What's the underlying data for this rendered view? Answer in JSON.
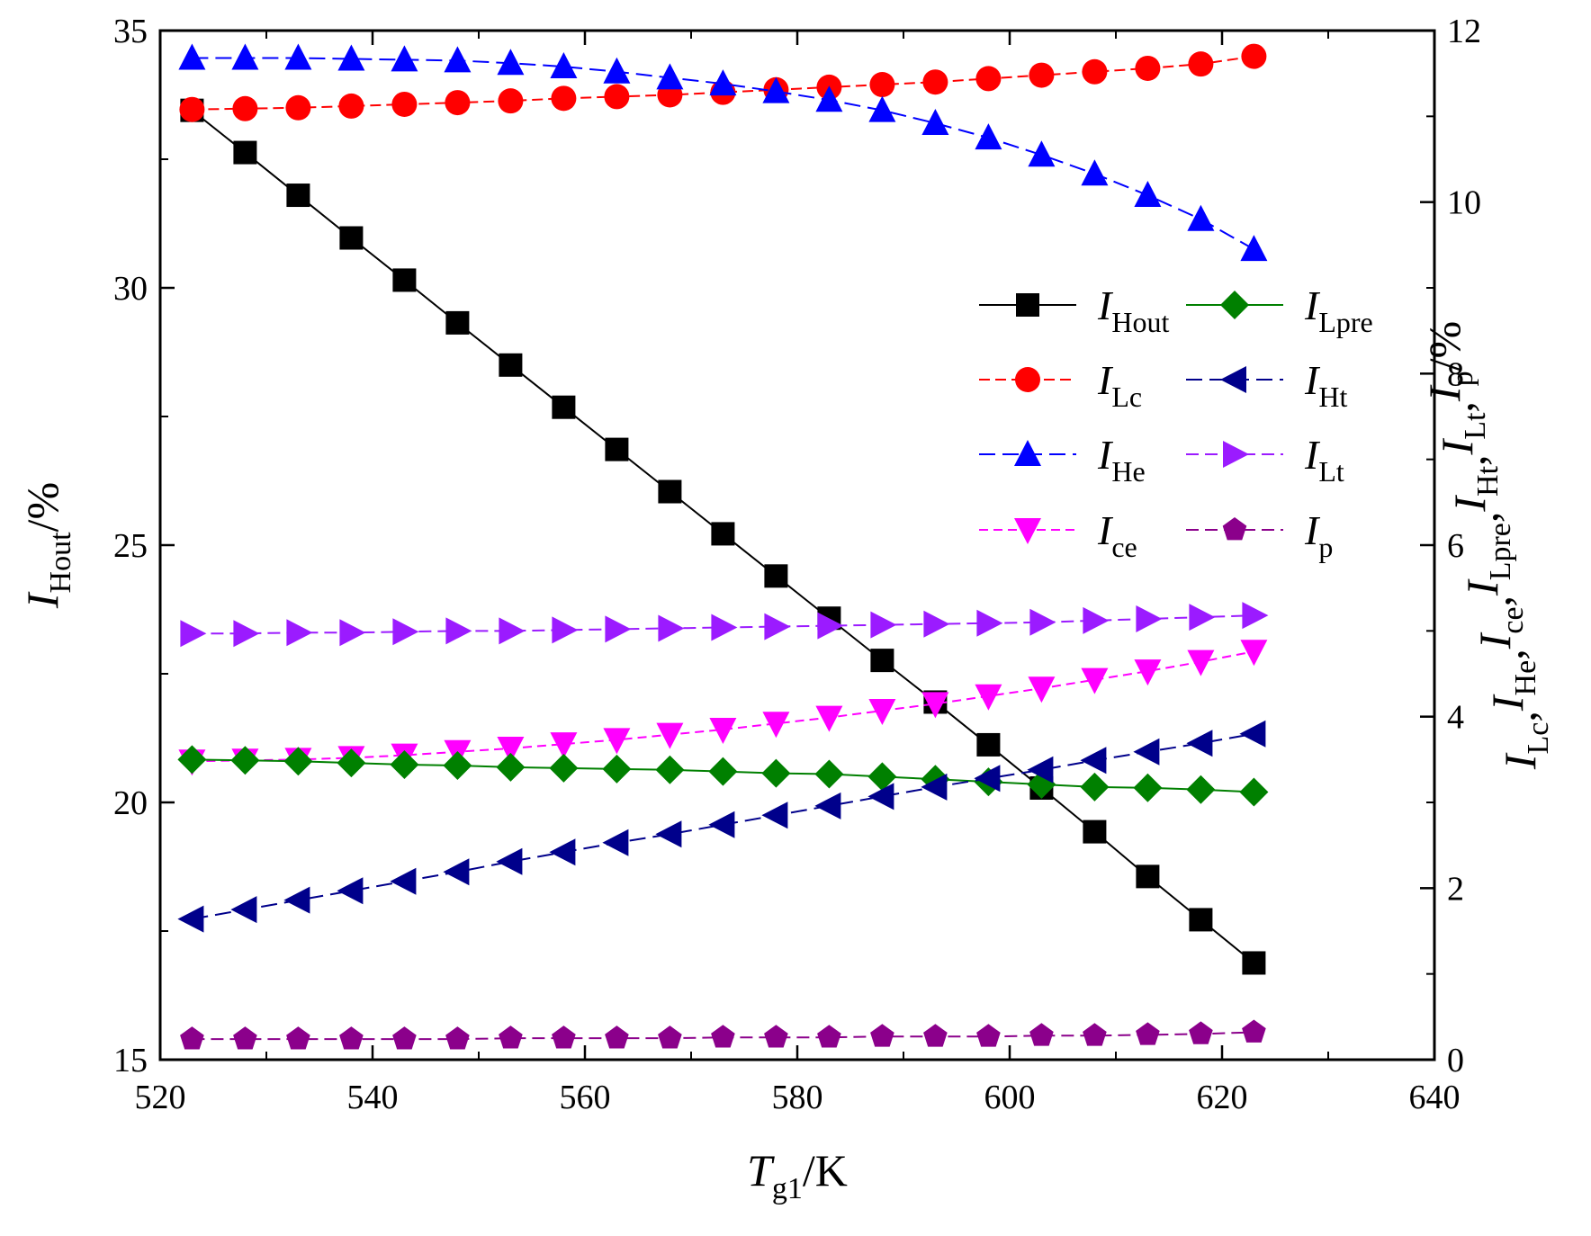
{
  "chart_data": {
    "type": "line",
    "x": [
      523,
      528,
      533,
      538,
      543,
      548,
      553,
      558,
      563,
      568,
      573,
      578,
      583,
      588,
      593,
      598,
      603,
      608,
      613,
      618,
      623
    ],
    "xlabel": {
      "main": "T",
      "sub": "g1",
      "unit": "/K"
    },
    "ylabel_left": {
      "main": "I",
      "sub": "Hout",
      "unit": "/%"
    },
    "ylabel_right": {
      "parts": [
        {
          "main": "I",
          "sub": "Lc",
          "sep": ","
        },
        {
          "main": "I",
          "sub": "He",
          "sep": ","
        },
        {
          "main": "I",
          "sub": "ce",
          "sep": ","
        },
        {
          "main": "I",
          "sub": "Lpre",
          "sep": ","
        },
        {
          "main": "I",
          "sub": "Ht",
          "sep": ","
        },
        {
          "main": "I",
          "sub": "Lt",
          "sep": ","
        },
        {
          "main": "I",
          "sub": "p",
          "sep": ""
        }
      ],
      "unit": "/%"
    },
    "xlim": [
      520,
      640
    ],
    "xticks": [
      520,
      540,
      560,
      580,
      600,
      620,
      640
    ],
    "ylim_left": [
      15,
      35
    ],
    "yticks_left": [
      15,
      20,
      25,
      30,
      35
    ],
    "ylim_right": [
      0,
      12
    ],
    "yticks_right": [
      0,
      2,
      4,
      6,
      8,
      10,
      12
    ],
    "legend_position": "right-middle",
    "series": [
      {
        "key": "hout",
        "main": "I",
        "sub": "Hout",
        "axis": "left",
        "color": "#000000",
        "marker": "square",
        "dash": "",
        "values": [
          33.45,
          32.63,
          31.8,
          30.97,
          30.15,
          29.32,
          28.5,
          27.68,
          26.86,
          26.04,
          25.22,
          24.4,
          23.58,
          22.76,
          21.95,
          21.12,
          20.28,
          19.43,
          18.56,
          17.72,
          16.88
        ]
      },
      {
        "key": "lc",
        "main": "I",
        "sub": "Lc",
        "axis": "right",
        "color": "#ff0000",
        "marker": "circle",
        "dash": "12,6",
        "values": [
          11.08,
          11.09,
          11.1,
          11.12,
          11.14,
          11.16,
          11.18,
          11.21,
          11.23,
          11.25,
          11.28,
          11.31,
          11.34,
          11.37,
          11.4,
          11.44,
          11.48,
          11.52,
          11.56,
          11.61,
          11.7
        ]
      },
      {
        "key": "he",
        "main": "I",
        "sub": "He",
        "axis": "right",
        "color": "#0000ff",
        "marker": "triangle-up",
        "dash": "18,8",
        "values": [
          11.68,
          11.68,
          11.68,
          11.67,
          11.66,
          11.65,
          11.62,
          11.58,
          11.52,
          11.45,
          11.38,
          11.29,
          11.19,
          11.07,
          10.92,
          10.75,
          10.55,
          10.33,
          10.08,
          9.8,
          9.45
        ]
      },
      {
        "key": "ce",
        "main": "I",
        "sub": "ce",
        "axis": "right",
        "color": "#ff00ff",
        "marker": "triangle-down",
        "dash": "10,6",
        "values": [
          3.48,
          3.49,
          3.5,
          3.52,
          3.55,
          3.59,
          3.63,
          3.68,
          3.73,
          3.79,
          3.85,
          3.92,
          3.99,
          4.07,
          4.15,
          4.24,
          4.33,
          4.43,
          4.53,
          4.64,
          4.76
        ]
      },
      {
        "key": "lpre",
        "main": "I",
        "sub": "Lpre",
        "axis": "right",
        "color": "#008000",
        "marker": "diamond",
        "dash": "",
        "values": [
          3.5,
          3.49,
          3.48,
          3.46,
          3.44,
          3.43,
          3.41,
          3.4,
          3.39,
          3.38,
          3.36,
          3.34,
          3.33,
          3.3,
          3.27,
          3.24,
          3.21,
          3.18,
          3.17,
          3.15,
          3.12
        ]
      },
      {
        "key": "ht",
        "main": "I",
        "sub": "Ht",
        "axis": "right",
        "color": "#00008b",
        "marker": "triangle-left",
        "dash": "18,8",
        "values": [
          1.64,
          1.75,
          1.86,
          1.97,
          2.08,
          2.19,
          2.31,
          2.42,
          2.53,
          2.63,
          2.74,
          2.85,
          2.96,
          3.07,
          3.18,
          3.28,
          3.38,
          3.49,
          3.59,
          3.69,
          3.8
        ]
      },
      {
        "key": "lt",
        "main": "I",
        "sub": "Lt",
        "axis": "right",
        "color": "#9b1bff",
        "marker": "triangle-right",
        "dash": "14,7",
        "values": [
          4.97,
          4.97,
          4.98,
          4.98,
          4.99,
          5.0,
          5.0,
          5.01,
          5.02,
          5.03,
          5.04,
          5.05,
          5.06,
          5.07,
          5.08,
          5.09,
          5.1,
          5.12,
          5.14,
          5.16,
          5.18
        ]
      },
      {
        "key": "p",
        "main": "I",
        "sub": "p",
        "axis": "right",
        "color": "#8b008b",
        "marker": "pentagon",
        "dash": "14,7",
        "values": [
          0.24,
          0.24,
          0.24,
          0.24,
          0.24,
          0.24,
          0.25,
          0.25,
          0.25,
          0.25,
          0.26,
          0.26,
          0.26,
          0.27,
          0.27,
          0.27,
          0.28,
          0.28,
          0.29,
          0.3,
          0.32
        ]
      }
    ],
    "legend_order": [
      "hout",
      "lpre",
      "lc",
      "ht",
      "he",
      "lt",
      "ce",
      "p"
    ]
  }
}
